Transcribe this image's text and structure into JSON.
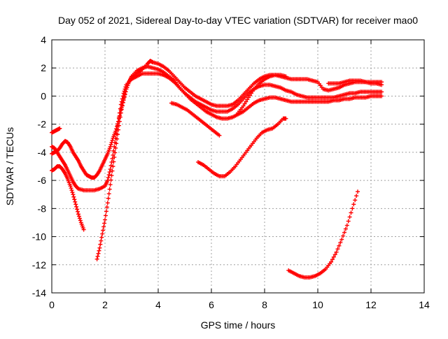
{
  "chart_data": {
    "type": "scatter",
    "title": "Day 052 of 2021, Sidereal Day-to-day VTEC variation (SDTVAR) for receiver mao0",
    "xlabel": "GPS time / hours",
    "ylabel": "SDTVAR / TECUs",
    "xlim": [
      0,
      14
    ],
    "ylim": [
      -14,
      4
    ],
    "xticks": [
      0,
      2,
      4,
      6,
      8,
      10,
      12,
      14
    ],
    "yticks": [
      -14,
      -12,
      -10,
      -8,
      -6,
      -4,
      -2,
      0,
      2,
      4
    ],
    "grid": true,
    "marker": "+",
    "color": "#ff0000",
    "series": [
      {
        "points": [
          [
            0.0,
            -2.6
          ],
          [
            0.1,
            -2.5
          ],
          [
            0.2,
            -2.4
          ],
          [
            0.3,
            -2.3
          ]
        ]
      },
      {
        "points": [
          [
            0.0,
            -5.3
          ],
          [
            0.1,
            -5.2
          ],
          [
            0.2,
            -5.0
          ],
          [
            0.3,
            -5.0
          ],
          [
            0.4,
            -5.2
          ],
          [
            0.5,
            -5.5
          ],
          [
            0.6,
            -5.9
          ],
          [
            0.7,
            -6.4
          ],
          [
            0.8,
            -7.0
          ],
          [
            0.9,
            -7.7
          ],
          [
            1.0,
            -8.4
          ],
          [
            1.1,
            -9.0
          ],
          [
            1.2,
            -9.5
          ]
        ]
      },
      {
        "points": [
          [
            0.0,
            -3.6
          ],
          [
            0.1,
            -3.7
          ],
          [
            0.2,
            -4.0
          ],
          [
            0.3,
            -4.3
          ],
          [
            0.4,
            -4.6
          ],
          [
            0.5,
            -4.9
          ],
          [
            0.6,
            -5.3
          ],
          [
            0.7,
            -5.7
          ],
          [
            0.8,
            -6.1
          ],
          [
            0.9,
            -6.4
          ],
          [
            1.0,
            -6.6
          ],
          [
            1.2,
            -6.7
          ],
          [
            1.4,
            -6.7
          ],
          [
            1.6,
            -6.7
          ],
          [
            1.8,
            -6.6
          ],
          [
            2.0,
            -6.4
          ],
          [
            2.1,
            -6.0
          ],
          [
            2.2,
            -5.2
          ],
          [
            2.3,
            -4.2
          ],
          [
            2.4,
            -3.0
          ],
          [
            2.5,
            -1.8
          ],
          [
            2.6,
            -0.6
          ],
          [
            2.7,
            0.2
          ],
          [
            2.8,
            0.8
          ],
          [
            3.0,
            1.2
          ],
          [
            3.2,
            1.4
          ],
          [
            3.4,
            1.6
          ],
          [
            3.6,
            1.6
          ],
          [
            3.8,
            1.6
          ],
          [
            4.0,
            1.6
          ],
          [
            4.2,
            1.5
          ],
          [
            4.4,
            1.3
          ],
          [
            4.6,
            1.0
          ],
          [
            4.8,
            0.6
          ],
          [
            5.0,
            0.2
          ],
          [
            5.2,
            -0.2
          ],
          [
            5.4,
            -0.5
          ],
          [
            5.6,
            -0.8
          ],
          [
            5.8,
            -1.1
          ],
          [
            6.0,
            -1.3
          ],
          [
            6.2,
            -1.5
          ],
          [
            6.4,
            -1.6
          ],
          [
            6.6,
            -1.6
          ],
          [
            6.8,
            -1.5
          ],
          [
            7.0,
            -1.3
          ],
          [
            7.2,
            -1.1
          ],
          [
            7.4,
            -0.8
          ],
          [
            7.6,
            -0.5
          ],
          [
            7.8,
            -0.3
          ],
          [
            8.0,
            -0.2
          ],
          [
            8.2,
            -0.1
          ],
          [
            8.4,
            -0.1
          ],
          [
            8.6,
            -0.2
          ],
          [
            8.8,
            -0.3
          ],
          [
            9.0,
            -0.4
          ],
          [
            9.2,
            -0.4
          ],
          [
            9.4,
            -0.4
          ],
          [
            9.6,
            -0.4
          ],
          [
            9.8,
            -0.4
          ],
          [
            10.0,
            -0.4
          ],
          [
            10.2,
            -0.4
          ],
          [
            10.4,
            -0.4
          ],
          [
            10.6,
            -0.3
          ],
          [
            10.8,
            -0.3
          ],
          [
            11.0,
            -0.2
          ],
          [
            11.2,
            -0.2
          ],
          [
            11.4,
            -0.1
          ],
          [
            11.6,
            -0.1
          ],
          [
            11.8,
            -0.1
          ],
          [
            12.0,
            0.0
          ],
          [
            12.2,
            0.0
          ],
          [
            12.4,
            0.0
          ]
        ]
      },
      {
        "points": [
          [
            0.0,
            -4.1
          ],
          [
            0.1,
            -4.0
          ],
          [
            0.2,
            -3.9
          ],
          [
            0.3,
            -3.7
          ],
          [
            0.4,
            -3.4
          ],
          [
            0.5,
            -3.2
          ],
          [
            0.6,
            -3.3
          ],
          [
            0.7,
            -3.6
          ],
          [
            0.8,
            -4.0
          ],
          [
            0.9,
            -4.3
          ],
          [
            1.0,
            -4.6
          ],
          [
            1.1,
            -5.0
          ],
          [
            1.2,
            -5.3
          ],
          [
            1.3,
            -5.6
          ],
          [
            1.4,
            -5.7
          ],
          [
            1.5,
            -5.8
          ],
          [
            1.6,
            -5.8
          ],
          [
            1.7,
            -5.6
          ],
          [
            1.8,
            -5.3
          ],
          [
            1.9,
            -4.9
          ],
          [
            2.0,
            -4.5
          ],
          [
            2.1,
            -4.1
          ],
          [
            2.2,
            -3.6
          ],
          [
            2.3,
            -3.0
          ],
          [
            2.4,
            -2.5
          ],
          [
            2.5,
            -1.8
          ],
          [
            2.6,
            -1.0
          ],
          [
            2.7,
            -0.3
          ],
          [
            2.8,
            0.5
          ],
          [
            2.9,
            1.0
          ],
          [
            3.0,
            1.4
          ],
          [
            3.2,
            1.8
          ],
          [
            3.4,
            2.0
          ],
          [
            3.6,
            2.1
          ],
          [
            3.8,
            2.0
          ],
          [
            4.0,
            1.9
          ],
          [
            4.2,
            1.7
          ],
          [
            4.4,
            1.4
          ],
          [
            4.6,
            1.1
          ],
          [
            4.8,
            0.6
          ],
          [
            5.0,
            0.2
          ],
          [
            5.2,
            -0.1
          ],
          [
            5.4,
            -0.4
          ],
          [
            5.6,
            -0.6
          ],
          [
            5.8,
            -0.8
          ],
          [
            6.0,
            -1.0
          ],
          [
            6.2,
            -1.1
          ],
          [
            6.4,
            -1.1
          ],
          [
            6.6,
            -1.1
          ],
          [
            6.8,
            -0.9
          ],
          [
            7.0,
            -0.6
          ],
          [
            7.2,
            -0.2
          ],
          [
            7.4,
            0.2
          ],
          [
            7.6,
            0.5
          ],
          [
            7.8,
            0.7
          ],
          [
            8.0,
            0.8
          ],
          [
            8.2,
            0.8
          ],
          [
            8.4,
            0.7
          ],
          [
            8.6,
            0.6
          ],
          [
            8.8,
            0.4
          ],
          [
            9.0,
            0.3
          ],
          [
            9.2,
            0.1
          ],
          [
            9.4,
            0.0
          ],
          [
            9.6,
            -0.1
          ],
          [
            9.8,
            -0.1
          ],
          [
            10.0,
            -0.1
          ],
          [
            10.2,
            -0.1
          ],
          [
            10.4,
            -0.1
          ],
          [
            10.6,
            -0.1
          ],
          [
            10.8,
            0.0
          ],
          [
            11.0,
            0.1
          ],
          [
            11.2,
            0.2
          ],
          [
            11.4,
            0.2
          ],
          [
            11.6,
            0.3
          ],
          [
            11.8,
            0.3
          ],
          [
            12.0,
            0.3
          ],
          [
            12.2,
            0.3
          ],
          [
            12.4,
            0.3
          ]
        ]
      },
      {
        "points": [
          [
            1.7,
            -11.6
          ],
          [
            1.8,
            -10.8
          ],
          [
            1.9,
            -9.8
          ],
          [
            2.0,
            -8.8
          ],
          [
            2.1,
            -7.6
          ],
          [
            2.2,
            -6.3
          ],
          [
            2.3,
            -5.0
          ],
          [
            2.4,
            -3.7
          ],
          [
            2.5,
            -2.4
          ],
          [
            2.6,
            -1.2
          ],
          [
            2.7,
            -0.2
          ],
          [
            2.8,
            0.5
          ],
          [
            2.9,
            1.0
          ],
          [
            3.0,
            1.3
          ],
          [
            3.2,
            1.6
          ],
          [
            3.4,
            1.9
          ],
          [
            3.6,
            2.3
          ],
          [
            3.7,
            2.5
          ],
          [
            3.8,
            2.4
          ],
          [
            4.0,
            2.3
          ],
          [
            4.2,
            2.1
          ],
          [
            4.4,
            1.8
          ],
          [
            4.6,
            1.4
          ],
          [
            4.8,
            1.0
          ],
          [
            5.0,
            0.6
          ],
          [
            5.2,
            0.3
          ],
          [
            5.4,
            0.0
          ],
          [
            5.6,
            -0.2
          ],
          [
            5.8,
            -0.4
          ],
          [
            6.0,
            -0.6
          ],
          [
            6.2,
            -0.7
          ],
          [
            6.4,
            -0.7
          ],
          [
            6.6,
            -0.7
          ],
          [
            6.8,
            -0.6
          ],
          [
            7.0,
            -0.3
          ],
          [
            7.2,
            0.1
          ],
          [
            7.4,
            0.5
          ],
          [
            7.6,
            0.9
          ],
          [
            7.8,
            1.2
          ],
          [
            8.0,
            1.4
          ],
          [
            8.2,
            1.5
          ],
          [
            8.4,
            1.5
          ],
          [
            8.6,
            1.4
          ],
          [
            8.8,
            1.3
          ],
          [
            9.0,
            1.2
          ],
          [
            9.2,
            1.2
          ],
          [
            9.4,
            1.2
          ],
          [
            9.6,
            1.2
          ],
          [
            9.8,
            1.1
          ],
          [
            10.0,
            1.0
          ],
          [
            10.2,
            0.5
          ],
          [
            10.4,
            0.4
          ],
          [
            10.6,
            0.5
          ],
          [
            10.8,
            0.6
          ],
          [
            11.0,
            0.8
          ],
          [
            11.2,
            0.9
          ],
          [
            11.4,
            1.0
          ],
          [
            11.6,
            1.0
          ],
          [
            11.8,
            1.0
          ],
          [
            12.0,
            1.0
          ],
          [
            12.2,
            1.0
          ],
          [
            12.4,
            1.0
          ]
        ]
      },
      {
        "points": [
          [
            4.5,
            -0.5
          ],
          [
            4.7,
            -0.6
          ],
          [
            4.9,
            -0.8
          ],
          [
            5.1,
            -1.0
          ],
          [
            5.3,
            -1.3
          ],
          [
            5.5,
            -1.6
          ],
          [
            5.7,
            -1.9
          ],
          [
            5.9,
            -2.2
          ],
          [
            6.1,
            -2.5
          ],
          [
            6.3,
            -2.8
          ]
        ]
      },
      {
        "points": [
          [
            7.0,
            -1.2
          ],
          [
            7.2,
            -0.7
          ],
          [
            7.4,
            -0.1
          ],
          [
            7.6,
            0.5
          ],
          [
            7.8,
            0.9
          ],
          [
            8.0,
            1.2
          ],
          [
            8.2,
            1.4
          ],
          [
            8.4,
            1.5
          ],
          [
            8.6,
            1.5
          ],
          [
            8.8,
            1.4
          ]
        ]
      },
      {
        "points": [
          [
            10.4,
            0.9
          ],
          [
            10.6,
            0.9
          ],
          [
            10.8,
            0.9
          ],
          [
            11.0,
            1.0
          ],
          [
            11.2,
            1.1
          ],
          [
            11.4,
            1.1
          ],
          [
            11.6,
            1.1
          ],
          [
            11.8,
            1.0
          ],
          [
            12.0,
            0.9
          ],
          [
            12.2,
            0.9
          ],
          [
            12.4,
            0.8
          ]
        ]
      },
      {
        "points": [
          [
            5.5,
            -4.7
          ],
          [
            5.7,
            -4.9
          ],
          [
            5.9,
            -5.2
          ],
          [
            6.1,
            -5.5
          ],
          [
            6.3,
            -5.7
          ],
          [
            6.5,
            -5.7
          ],
          [
            6.7,
            -5.4
          ],
          [
            6.9,
            -5.0
          ],
          [
            7.1,
            -4.5
          ],
          [
            7.3,
            -4.0
          ],
          [
            7.5,
            -3.5
          ],
          [
            7.7,
            -3.0
          ],
          [
            7.9,
            -2.6
          ],
          [
            8.1,
            -2.4
          ],
          [
            8.3,
            -2.3
          ],
          [
            8.5,
            -2.0
          ],
          [
            8.7,
            -1.6
          ],
          [
            8.8,
            -1.6
          ]
        ]
      },
      {
        "points": [
          [
            8.9,
            -12.4
          ],
          [
            9.1,
            -12.6
          ],
          [
            9.3,
            -12.8
          ],
          [
            9.5,
            -12.9
          ],
          [
            9.7,
            -12.9
          ],
          [
            9.9,
            -12.8
          ],
          [
            10.1,
            -12.6
          ],
          [
            10.3,
            -12.3
          ],
          [
            10.5,
            -11.8
          ],
          [
            10.7,
            -11.1
          ],
          [
            10.9,
            -10.2
          ],
          [
            11.1,
            -9.2
          ],
          [
            11.3,
            -8.0
          ],
          [
            11.5,
            -6.8
          ]
        ]
      }
    ]
  }
}
